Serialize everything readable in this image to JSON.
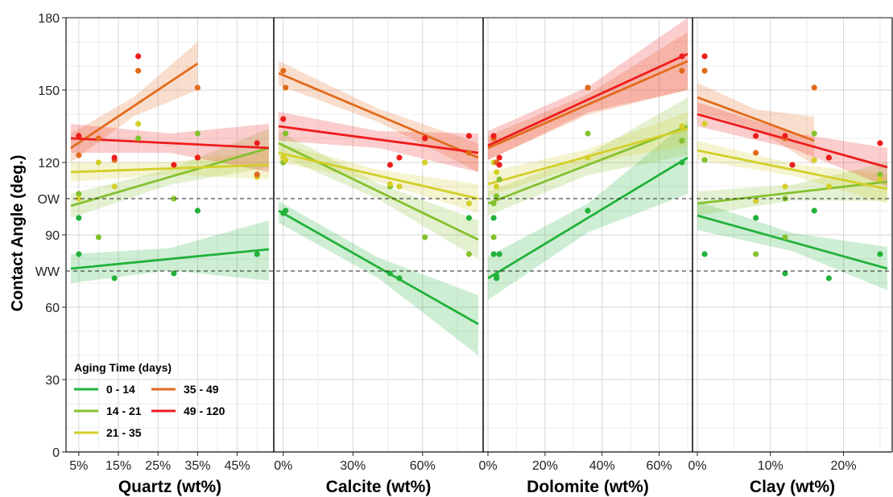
{
  "chart_data": {
    "type": "scatter",
    "ylabel": "Contact Angle (deg.)",
    "ylim": [
      0,
      180
    ],
    "yticks": [
      0,
      30,
      60,
      90,
      120,
      150,
      180
    ],
    "reference_lines": [
      {
        "label": "OW",
        "y": 105
      },
      {
        "label": "WW",
        "y": 75
      }
    ],
    "grid": true,
    "legend": {
      "title": "Aging Time (days)",
      "placement": "bottom-left"
    },
    "series": [
      {
        "name": "0 - 14",
        "color": "#22b23a"
      },
      {
        "name": "14 - 21",
        "color": "#84c12e"
      },
      {
        "name": "21 - 35",
        "color": "#d3cf2a"
      },
      {
        "name": "35 - 49",
        "color": "#e26a1c"
      },
      {
        "name": "49 - 120",
        "color": "#ee1c1c"
      }
    ],
    "panels": [
      {
        "xlabel": "Quartz (wt%)",
        "xlim": [
          3,
          53
        ],
        "xticks": [
          5,
          15,
          25,
          35,
          45
        ],
        "xticklabels": [
          "5%",
          "15%",
          "25%",
          "35%",
          "45%"
        ],
        "fits": [
          {
            "series": 0,
            "x": [
              3,
              53
            ],
            "y": [
              76,
              84
            ],
            "band": [
              [
                70,
                82
              ],
              [
                71,
                96
              ]
            ]
          },
          {
            "series": 1,
            "x": [
              3,
              53
            ],
            "y": [
              102,
              126
            ],
            "band": [
              [
                97,
                107
              ],
              [
                118,
                134
              ]
            ]
          },
          {
            "series": 2,
            "x": [
              3,
              53
            ],
            "y": [
              116,
              119
            ],
            "band": [
              [
                112,
                120
              ],
              [
                113,
                125
              ]
            ]
          },
          {
            "series": 3,
            "x": [
              3,
              35
            ],
            "y": [
              126,
              161
            ],
            "band": [
              [
                120,
                132
              ],
              [
                150,
                170
              ]
            ]
          },
          {
            "series": 4,
            "x": [
              3,
              53
            ],
            "y": [
              130,
              126
            ],
            "band": [
              [
                124,
                136
              ],
              [
                116,
                136
              ]
            ]
          }
        ],
        "points": [
          {
            "series": 0,
            "x": [
              5,
              5,
              14,
              29,
              35,
              50
            ],
            "y": [
              97,
              82,
              72,
              74,
              100,
              82
            ]
          },
          {
            "series": 1,
            "x": [
              5,
              10,
              20,
              29,
              35,
              50
            ],
            "y": [
              107,
              89,
              130,
              105,
              132,
              115
            ]
          },
          {
            "series": 2,
            "x": [
              5,
              10,
              14,
              20,
              35,
              50
            ],
            "y": [
              105,
              120,
              110,
              136,
              122,
              114
            ]
          },
          {
            "series": 3,
            "x": [
              5,
              10,
              14,
              20,
              35,
              50
            ],
            "y": [
              123,
              130,
              121,
              158,
              151,
              115
            ]
          },
          {
            "series": 4,
            "x": [
              5,
              14,
              20,
              29,
              35,
              50
            ],
            "y": [
              131,
              122,
              164,
              119,
              122,
              128
            ]
          }
        ]
      },
      {
        "xlabel": "Calcite (wt%)",
        "xlim": [
          -2,
          84
        ],
        "xticks": [
          0,
          30,
          60
        ],
        "xticklabels": [
          "0%",
          "30%",
          "60%"
        ],
        "fits": [
          {
            "series": 0,
            "x": [
              -2,
              84
            ],
            "y": [
              100,
              53
            ],
            "band": [
              [
                95,
                104
              ],
              [
                40,
                65
              ]
            ]
          },
          {
            "series": 1,
            "x": [
              -2,
              84
            ],
            "y": [
              128,
              88
            ],
            "band": [
              [
                123,
                133
              ],
              [
                80,
                96
              ]
            ]
          },
          {
            "series": 2,
            "x": [
              -2,
              84
            ],
            "y": [
              124,
              105
            ],
            "band": [
              [
                120,
                128
              ],
              [
                99,
                111
              ]
            ]
          },
          {
            "series": 3,
            "x": [
              -2,
              84
            ],
            "y": [
              157,
              122
            ],
            "band": [
              [
                152,
                162
              ],
              [
                116,
                128
              ]
            ]
          },
          {
            "series": 4,
            "x": [
              -2,
              84
            ],
            "y": [
              135,
              124
            ],
            "band": [
              [
                129,
                141
              ],
              [
                116,
                132
              ]
            ]
          }
        ],
        "points": [
          {
            "series": 0,
            "x": [
              0,
              1,
              46,
              50,
              80
            ],
            "y": [
              99,
              100,
              74,
              72,
              97
            ]
          },
          {
            "series": 1,
            "x": [
              0,
              1,
              46,
              61,
              80
            ],
            "y": [
              120,
              132,
              110,
              89,
              82
            ]
          },
          {
            "series": 2,
            "x": [
              0,
              1,
              46,
              50,
              61,
              80
            ],
            "y": [
              122,
              121,
              111,
              110,
              120,
              103
            ]
          },
          {
            "series": 3,
            "x": [
              0,
              1,
              61,
              80
            ],
            "y": [
              158,
              151,
              130,
              124
            ]
          },
          {
            "series": 4,
            "x": [
              0,
              46,
              50,
              61,
              80
            ],
            "y": [
              138,
              119,
              122,
              130,
              131
            ]
          }
        ]
      },
      {
        "xlabel": "Dolomite (wt%)",
        "xlim": [
          0,
          70
        ],
        "xticks": [
          0,
          20,
          40,
          60
        ],
        "xticklabels": [
          "0%",
          "20%",
          "40%",
          "60%"
        ],
        "fits": [
          {
            "series": 0,
            "x": [
              0,
              70
            ],
            "y": [
              72,
              122
            ],
            "band": [
              [
                63,
                81
              ],
              [
                107,
                137
              ]
            ]
          },
          {
            "series": 1,
            "x": [
              0,
              70
            ],
            "y": [
              103,
              135
            ],
            "band": [
              [
                98,
                108
              ],
              [
                123,
                147
              ]
            ]
          },
          {
            "series": 2,
            "x": [
              0,
              70
            ],
            "y": [
              111,
              134
            ],
            "band": [
              [
                106,
                116
              ],
              [
                127,
                141
              ]
            ]
          },
          {
            "series": 3,
            "x": [
              0,
              70
            ],
            "y": [
              126,
              162
            ],
            "band": [
              [
                121,
                131
              ],
              [
                150,
                174
              ]
            ]
          },
          {
            "series": 4,
            "x": [
              0,
              70
            ],
            "y": [
              127,
              165
            ],
            "band": [
              [
                121,
                133
              ],
              [
                150,
                180
              ]
            ]
          }
        ],
        "points": [
          {
            "series": 0,
            "x": [
              2,
              2,
              3,
              3,
              4,
              35,
              68
            ],
            "y": [
              97,
              82,
              73,
              72,
              82,
              100,
              120
            ]
          },
          {
            "series": 1,
            "x": [
              2,
              2,
              3,
              4,
              35,
              68
            ],
            "y": [
              103,
              89,
              106,
              113,
              132,
              129
            ]
          },
          {
            "series": 2,
            "x": [
              2,
              3,
              3,
              35,
              68
            ],
            "y": [
              120,
              116,
              110,
              122,
              135
            ]
          },
          {
            "series": 3,
            "x": [
              2,
              3,
              35,
              68
            ],
            "y": [
              130,
              120,
              151,
              158
            ]
          },
          {
            "series": 4,
            "x": [
              2,
              4,
              4,
              68
            ],
            "y": [
              131,
              122,
              119,
              164
            ]
          }
        ]
      },
      {
        "xlabel": "Clay (wt%)",
        "xlim": [
          0,
          26
        ],
        "xticks": [
          0,
          10,
          20
        ],
        "xticklabels": [
          "0%",
          "10%",
          "20%"
        ],
        "fits": [
          {
            "series": 0,
            "x": [
              0,
              26
            ],
            "y": [
              98,
              76
            ],
            "band": [
              [
                92,
                104
              ],
              [
                67,
                85
              ]
            ]
          },
          {
            "series": 1,
            "x": [
              0,
              26
            ],
            "y": [
              103,
              112
            ],
            "band": [
              [
                98,
                108
              ],
              [
                104,
                120
              ]
            ]
          },
          {
            "series": 2,
            "x": [
              0,
              26
            ],
            "y": [
              125,
              109
            ],
            "band": [
              [
                121,
                129
              ],
              [
                103,
                115
              ]
            ]
          },
          {
            "series": 3,
            "x": [
              0,
              16
            ],
            "y": [
              147,
              129
            ],
            "band": [
              [
                141,
                153
              ],
              [
                119,
                139
              ]
            ]
          },
          {
            "series": 4,
            "x": [
              0,
              26
            ],
            "y": [
              140,
              118
            ],
            "band": [
              [
                135,
                145
              ],
              [
                110,
                126
              ]
            ]
          }
        ],
        "points": [
          {
            "series": 0,
            "x": [
              1,
              8,
              12,
              16,
              18,
              25
            ],
            "y": [
              82,
              97,
              74,
              100,
              72,
              82
            ]
          },
          {
            "series": 1,
            "x": [
              1,
              8,
              12,
              12,
              16,
              25
            ],
            "y": [
              121,
              82,
              89,
              105,
              132,
              115
            ]
          },
          {
            "series": 2,
            "x": [
              1,
              8,
              12,
              16,
              18,
              25
            ],
            "y": [
              136,
              104,
              110,
              121,
              110,
              113
            ]
          },
          {
            "series": 3,
            "x": [
              1,
              8,
              12,
              16,
              18
            ],
            "y": [
              158,
              124,
              130,
              151,
              122
            ]
          },
          {
            "series": 4,
            "x": [
              1,
              8,
              12,
              13,
              18,
              25
            ],
            "y": [
              164,
              131,
              131,
              119,
              122,
              128
            ]
          }
        ]
      }
    ]
  }
}
